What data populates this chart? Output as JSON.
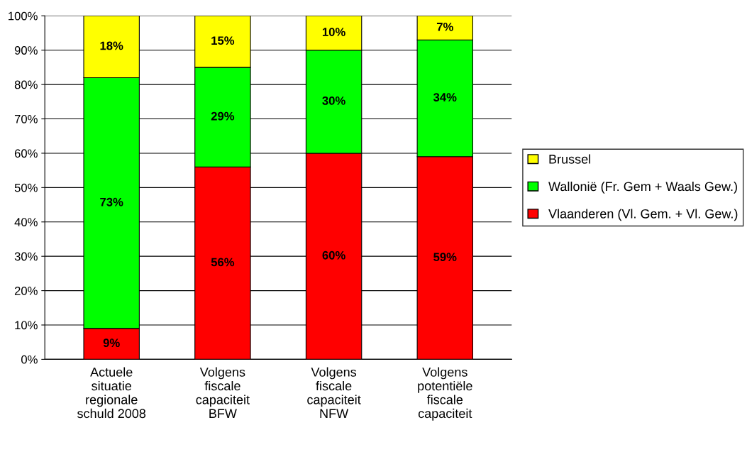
{
  "chart_data": {
    "type": "bar",
    "stacked": true,
    "categories": [
      "Actuele\nsituatie\nregionale\nschuld 2008",
      "Volgens\nfiscale\ncapaciteit\nBFW",
      "Volgens\nfiscale\ncapaciteit\nNFW",
      "Volgens\npotentiële\nfiscale\ncapaciteit"
    ],
    "series": [
      {
        "name": "Vlaanderen (Vl. Gem. + Vl. Gew.)",
        "color": "#ff0000",
        "values": [
          9,
          56,
          60,
          59
        ],
        "value_labels": [
          "9%",
          "56%",
          "60%",
          "59%"
        ]
      },
      {
        "name": "Wallonië (Fr. Gem + Waals Gew.)",
        "color": "#00ff00",
        "values": [
          73,
          29,
          30,
          34
        ],
        "value_labels": [
          "73%",
          "29%",
          "30%",
          "34%"
        ]
      },
      {
        "name": "Brussel",
        "color": "#ffff00",
        "values": [
          18,
          15,
          10,
          7
        ],
        "value_labels": [
          "18%",
          "15%",
          "10%",
          "7%"
        ]
      }
    ],
    "ylim": [
      0,
      100
    ],
    "yticks": [
      {
        "value": 0,
        "label": "0%"
      },
      {
        "value": 10,
        "label": "10%"
      },
      {
        "value": 20,
        "label": "20%"
      },
      {
        "value": 30,
        "label": "30%"
      },
      {
        "value": 40,
        "label": "40%"
      },
      {
        "value": 50,
        "label": "50%"
      },
      {
        "value": 60,
        "label": "60%"
      },
      {
        "value": 70,
        "label": "70%"
      },
      {
        "value": 80,
        "label": "80%"
      },
      {
        "value": 90,
        "label": "90%"
      },
      {
        "value": 100,
        "label": "100%"
      }
    ],
    "grid": "y",
    "legend": "right"
  }
}
